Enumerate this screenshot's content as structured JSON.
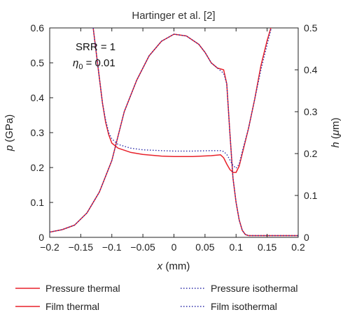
{
  "chart_data": {
    "type": "line",
    "title": "Hartinger et al. [2]",
    "xlabel_var": "x",
    "xlabel_unit": " (mm)",
    "ylabel_var": "p",
    "ylabel_unit": " (GPa)",
    "y2label_var": "h",
    "y2label_unit_open": " (",
    "y2label_unit_mu": "μ",
    "y2label_unit_close": "m)",
    "xlim": [
      -0.2,
      0.2
    ],
    "ylim": [
      0,
      0.6
    ],
    "y2lim": [
      0,
      0.5
    ],
    "x_ticks": [
      "−0.2",
      "−0.15",
      "−0.1",
      "−0.05",
      "0",
      "0.05",
      "0.1",
      "0.15",
      "0.2"
    ],
    "x_tick_values": [
      -0.2,
      -0.15,
      -0.1,
      -0.05,
      0,
      0.05,
      0.1,
      0.15,
      0.2
    ],
    "y_ticks": [
      "0",
      "0.1",
      "0.2",
      "0.3",
      "0.4",
      "0.5",
      "0.6"
    ],
    "y_tick_values": [
      0,
      0.1,
      0.2,
      0.3,
      0.4,
      0.5,
      0.6
    ],
    "y2_ticks": [
      "0",
      "0.1",
      "0.2",
      "0.3",
      "0.4",
      "0.5"
    ],
    "y2_tick_values": [
      0,
      0.1,
      0.2,
      0.3,
      0.4,
      0.5
    ],
    "annotations": {
      "srr": "SRR = 1",
      "eta_symbol": "η",
      "eta_sub": "0",
      "eta_value": " = 0.01"
    },
    "legend_placement": "bottom",
    "colors": {
      "thermal": "#e8212a",
      "isothermal": "#2b2ba8"
    },
    "series": [
      {
        "name": "Pressure thermal",
        "axis": "left",
        "style": "solid",
        "x": [
          -0.2,
          -0.18,
          -0.16,
          -0.14,
          -0.12,
          -0.1,
          -0.09,
          -0.08,
          -0.06,
          -0.04,
          -0.02,
          0,
          0.02,
          0.04,
          0.05,
          0.06,
          0.07,
          0.08,
          0.085,
          0.09,
          0.095,
          0.1,
          0.105,
          0.11,
          0.115,
          0.12,
          0.15,
          0.2
        ],
        "y": [
          0.015,
          0.022,
          0.035,
          0.07,
          0.13,
          0.22,
          0.29,
          0.36,
          0.45,
          0.52,
          0.562,
          0.582,
          0.577,
          0.553,
          0.53,
          0.5,
          0.485,
          0.48,
          0.44,
          0.3,
          0.17,
          0.1,
          0.05,
          0.02,
          0.008,
          0.005,
          0.005,
          0.005
        ]
      },
      {
        "name": "Film thermal",
        "axis": "right",
        "style": "solid",
        "x": [
          -0.13,
          -0.125,
          -0.12,
          -0.115,
          -0.11,
          -0.105,
          -0.1,
          -0.09,
          -0.07,
          -0.05,
          -0.02,
          0,
          0.03,
          0.06,
          0.075,
          0.08,
          0.085,
          0.09,
          0.095,
          0.1,
          0.105,
          0.11,
          0.12,
          0.13,
          0.14,
          0.15,
          0.16
        ],
        "y": [
          0.5,
          0.44,
          0.38,
          0.32,
          0.275,
          0.245,
          0.225,
          0.213,
          0.203,
          0.198,
          0.194,
          0.193,
          0.193,
          0.195,
          0.197,
          0.19,
          0.175,
          0.162,
          0.155,
          0.155,
          0.17,
          0.2,
          0.26,
          0.33,
          0.41,
          0.47,
          0.52
        ]
      },
      {
        "name": "Pressure isothermal",
        "axis": "left",
        "style": "dotted",
        "x": [
          -0.2,
          -0.18,
          -0.16,
          -0.14,
          -0.12,
          -0.1,
          -0.09,
          -0.08,
          -0.06,
          -0.04,
          -0.02,
          0,
          0.02,
          0.04,
          0.05,
          0.06,
          0.07,
          0.08,
          0.085,
          0.09,
          0.095,
          0.1,
          0.105,
          0.11,
          0.115,
          0.12,
          0.15,
          0.2
        ],
        "y": [
          0.015,
          0.022,
          0.035,
          0.07,
          0.13,
          0.22,
          0.29,
          0.36,
          0.45,
          0.52,
          0.562,
          0.582,
          0.577,
          0.553,
          0.53,
          0.5,
          0.485,
          0.47,
          0.44,
          0.3,
          0.17,
          0.1,
          0.05,
          0.02,
          0.008,
          0.005,
          0.005,
          0.005
        ]
      },
      {
        "name": "Film isothermal",
        "axis": "right",
        "style": "dotted",
        "x": [
          -0.13,
          -0.125,
          -0.12,
          -0.115,
          -0.11,
          -0.105,
          -0.1,
          -0.09,
          -0.07,
          -0.05,
          -0.02,
          0,
          0.03,
          0.06,
          0.075,
          0.08,
          0.085,
          0.09,
          0.095,
          0.1,
          0.105,
          0.11,
          0.12,
          0.13,
          0.14,
          0.15,
          0.16
        ],
        "y": [
          0.5,
          0.44,
          0.38,
          0.32,
          0.28,
          0.25,
          0.235,
          0.222,
          0.213,
          0.209,
          0.207,
          0.206,
          0.206,
          0.207,
          0.207,
          0.205,
          0.198,
          0.185,
          0.172,
          0.165,
          0.175,
          0.205,
          0.26,
          0.33,
          0.4,
          0.46,
          0.52
        ]
      }
    ]
  }
}
